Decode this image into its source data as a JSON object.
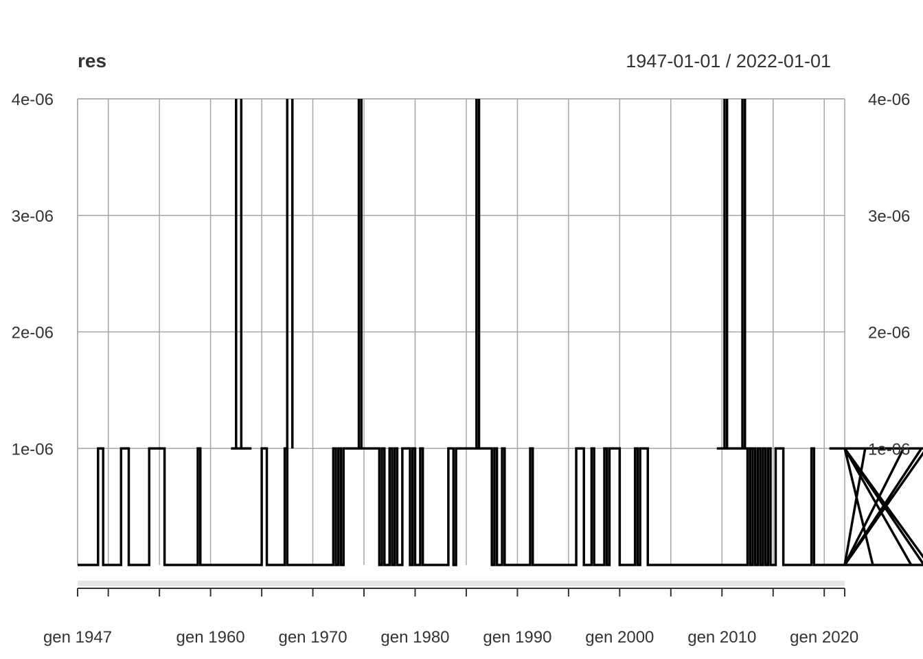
{
  "chart_data": {
    "type": "line",
    "title": "res",
    "date_range": "1947-01-01 / 2022-01-01",
    "x_range": [
      "1947-01-01",
      "2022-01-01"
    ],
    "ylim": [
      0,
      4e-06
    ],
    "y_ticks": [
      {
        "value": 1e-06,
        "label": "1e-06"
      },
      {
        "value": 2e-06,
        "label": "2e-06"
      },
      {
        "value": 3e-06,
        "label": "3e-06"
      },
      {
        "value": 4e-06,
        "label": "4e-06"
      }
    ],
    "x_tick_labels": [
      {
        "year": 1947,
        "label": "gen 1947"
      },
      {
        "year": 1960,
        "label": "gen 1960"
      },
      {
        "year": 1970,
        "label": "gen 1970"
      },
      {
        "year": 1980,
        "label": "gen 1980"
      },
      {
        "year": 1990,
        "label": "gen 1990"
      },
      {
        "year": 2000,
        "label": "gen 2000"
      },
      {
        "year": 2010,
        "label": "gen 2010"
      },
      {
        "year": 2020,
        "label": "gen 2020"
      }
    ],
    "x_gridlines": [
      1947,
      1950,
      1955,
      1960,
      1965,
      1970,
      1975,
      1980,
      1985,
      1990,
      1995,
      2000,
      2005,
      2010,
      2015,
      2020
    ],
    "grid": true,
    "line_color": "#000000",
    "grid_color": "#a6a6a6",
    "series": [
      {
        "step": "quarter",
        "x_start": "1947-01-01",
        "values_e6": [
          0,
          0,
          0,
          0,
          0,
          0,
          0,
          0,
          1,
          1,
          0,
          0,
          0,
          0,
          0,
          0,
          0,
          1,
          1,
          1,
          0,
          0,
          0,
          0,
          0,
          0,
          0,
          0,
          1,
          1,
          1,
          1,
          1,
          1,
          0,
          0,
          0,
          0,
          0,
          0,
          0,
          0,
          0,
          0,
          0,
          0,
          0,
          1,
          0,
          0,
          0,
          0,
          0,
          0,
          0,
          0,
          0,
          0,
          0,
          0,
          0,
          0,
          0,
          0,
          0,
          0,
          0,
          0,
          0,
          0,
          0,
          0,
          1,
          1,
          0,
          0,
          0,
          0,
          0,
          0,
          0,
          1,
          0,
          0,
          0,
          0,
          0,
          0,
          0,
          0,
          0,
          0,
          0,
          0,
          0,
          0,
          0,
          0,
          0,
          0,
          1,
          0,
          1,
          0,
          1,
          1,
          1,
          1,
          1,
          1,
          1,
          1,
          1,
          1,
          1,
          1,
          1,
          1,
          0,
          1,
          0,
          0,
          1,
          0,
          1,
          0,
          0,
          1,
          1,
          1,
          0,
          1,
          0,
          0,
          1,
          0,
          0,
          0,
          0,
          0,
          0,
          0,
          0,
          0,
          0,
          1,
          1,
          0,
          1,
          1,
          1,
          1,
          1,
          1,
          1,
          1,
          1,
          1,
          1,
          1,
          1,
          1,
          0,
          1,
          0,
          0,
          1,
          0,
          0,
          0,
          0,
          0,
          0,
          0,
          0,
          0,
          0,
          1,
          0,
          0,
          0,
          0,
          0,
          0,
          0,
          0,
          0,
          0,
          0,
          0,
          0,
          0,
          0,
          0,
          0,
          1,
          1,
          1,
          0,
          0,
          0,
          1,
          0,
          0,
          0,
          0,
          1,
          0,
          1,
          1,
          1,
          1,
          0,
          0,
          0,
          0,
          0,
          0,
          1,
          0,
          1,
          1,
          1,
          0,
          0,
          0,
          0,
          0,
          0,
          0,
          0,
          0,
          0,
          0,
          0,
          0,
          0,
          0,
          0,
          0,
          0,
          0,
          0,
          0,
          0,
          0,
          0,
          0,
          0,
          0,
          0,
          0,
          0,
          0,
          0,
          0,
          0,
          0,
          0,
          0,
          0,
          0,
          1,
          0,
          1,
          0,
          1,
          0,
          1,
          0,
          1,
          0,
          0,
          1,
          1,
          1,
          0,
          0,
          0,
          0,
          0,
          0,
          0,
          0,
          0,
          0,
          0,
          1,
          0,
          0,
          0,
          0,
          0,
          0,
          0,
          0,
          0,
          0,
          0,
          0,
          0,
          0,
          0,
          0,
          0,
          0,
          0,
          0,
          1,
          1,
          1,
          0,
          0,
          0,
          0,
          0,
          0,
          0,
          0,
          0,
          0,
          0,
          0,
          1,
          1,
          1,
          0,
          0,
          0,
          0,
          1,
          0,
          1,
          0,
          0,
          0,
          0,
          0,
          0,
          0,
          0,
          0,
          0,
          0,
          0,
          0,
          0,
          0,
          0,
          0,
          0,
          0,
          0,
          0,
          0,
          0,
          0,
          0,
          0,
          0,
          0,
          0,
          0,
          0,
          0,
          0,
          0,
          0,
          0,
          0,
          0,
          0,
          0,
          0,
          0,
          0,
          0,
          0,
          0,
          0,
          0,
          0,
          0,
          0,
          0,
          0,
          0,
          0,
          0,
          0,
          0,
          0,
          0,
          0,
          0,
          0,
          0,
          0,
          0,
          0,
          0,
          0,
          0,
          0,
          0,
          0,
          0,
          0,
          0,
          0,
          0,
          0,
          0,
          0,
          0,
          0,
          0,
          0,
          0,
          0,
          0,
          0,
          0,
          0,
          0,
          0,
          0,
          0,
          0,
          0,
          0,
          0,
          0,
          0,
          0,
          0,
          0,
          0,
          0,
          0,
          0,
          0,
          0,
          0,
          0,
          0,
          0,
          0,
          0,
          0,
          0,
          0,
          0,
          0,
          0,
          0,
          0,
          0,
          0,
          0,
          0,
          0,
          0,
          0,
          0,
          0,
          0,
          0,
          0,
          0,
          0,
          0,
          0,
          0,
          0,
          0,
          0,
          0,
          0,
          0,
          0,
          0,
          0,
          0,
          0,
          0,
          0,
          0,
          0,
          0,
          0,
          0,
          0,
          0,
          0,
          0,
          0,
          0,
          0,
          0,
          0,
          0,
          0,
          0,
          0,
          0,
          0,
          0,
          0,
          0,
          0,
          0,
          0,
          0,
          0,
          0,
          0,
          0,
          0,
          0,
          0,
          0,
          0,
          0,
          0,
          0,
          0,
          0,
          0,
          0,
          0,
          0,
          0,
          0,
          0,
          0,
          0,
          0,
          0,
          0,
          0,
          0,
          0,
          0,
          0,
          0,
          0,
          0,
          0,
          0,
          0,
          0,
          0,
          0,
          0,
          0,
          0,
          0,
          0,
          0,
          0,
          0,
          0,
          0,
          0,
          0,
          0,
          0,
          0,
          0,
          0,
          0,
          0,
          0,
          0,
          0,
          0,
          0,
          0,
          0,
          0,
          0,
          0,
          0,
          0,
          0,
          0,
          0,
          0,
          0,
          0,
          0,
          0,
          0,
          0,
          0,
          0,
          0,
          0,
          0,
          0,
          0,
          0,
          0,
          0,
          0,
          0,
          0,
          0,
          0,
          0,
          0,
          0,
          0,
          0,
          0,
          0,
          0,
          0,
          0,
          0
        ]
      }
    ],
    "spikes": [
      {
        "x": "1962-07-01",
        "y": 4e-06
      },
      {
        "x": "1963-01-01",
        "y": 4e-06
      },
      {
        "x": "1967-07-01",
        "y": 4e-06
      },
      {
        "x": "1968-01-01",
        "y": 4e-06
      },
      {
        "x": "1974-07-01",
        "y": 4e-06
      },
      {
        "x": "1974-10-01",
        "y": 4e-06
      },
      {
        "x": "1986-01-01",
        "y": 4e-06
      },
      {
        "x": "1986-04-01",
        "y": 4e-06
      },
      {
        "x": "2010-04-01",
        "y": 4e-06
      },
      {
        "x": "2010-07-01",
        "y": 4e-06
      },
      {
        "x": "2012-01-01",
        "y": 4e-06
      },
      {
        "x": "2012-04-01",
        "y": 4e-06
      }
    ],
    "lines_at_1e6": [
      {
        "from": "1962-01-01",
        "to": "1964-01-01"
      },
      {
        "from": "1973-07-01",
        "to": "1975-07-01"
      },
      {
        "from": "1984-10-01",
        "to": "1987-01-01"
      },
      {
        "from": "2009-07-01",
        "to": "2013-01-01"
      },
      {
        "from": "2020-07-01",
        "to": "2022-01-01"
      }
    ]
  }
}
